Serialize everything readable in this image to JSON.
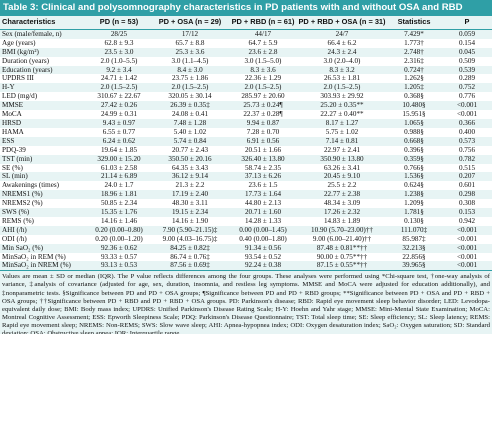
{
  "title": "Table 3: Clinical and polysomnography characteristics in PD patients with and without OSA and RBD",
  "columns": [
    "Characteristics",
    "PD (n = 53)",
    "PD + OSA (n = 29)",
    "PD + RBD (n = 61)",
    "PD + RBD + OSA (n = 31)",
    "Statistics",
    "P"
  ],
  "rows": [
    [
      "Sex (male/female, n)",
      "28/25",
      "17/12",
      "44/17",
      "24/7",
      "7.429*",
      "0.059"
    ],
    [
      "Age (years)",
      "62.8 ± 9.3",
      "65.7 ± 8.8",
      "64.7 ± 5.9",
      "66.4 ± 6.2",
      "1.773†",
      "0.154"
    ],
    [
      "BMI (kg/m²)",
      "23.5 ± 3.0",
      "25.3 ± 3.6",
      "23.6 ± 2.8",
      "24.3 ± 2.4",
      "2.748†",
      "0.045"
    ],
    [
      "Duration (years)",
      "2.0 (1.0–5.5)",
      "3.0 (1.1–4.5)",
      "3.0 (1.5–5.0)",
      "3.0 (2.0–4.0)",
      "2.316‡",
      "0.509"
    ],
    [
      "Education (years)",
      "9.2 ± 3.4",
      "8.4 ± 3.0",
      "8.3 ± 3.6",
      "8.3 ± 3.2",
      "0.724†",
      "0.539"
    ],
    [
      "UPDRS III",
      "24.71 ± 1.42",
      "23.75 ± 1.86",
      "22.36 ± 1.29",
      "26.53 ± 1.81",
      "1.262§",
      "0.289"
    ],
    [
      "H-Y",
      "2.0 (1.5–2.5)",
      "2.0 (1.5–2.5)",
      "2.0 (1.5–2.5)",
      "2.0 (1.5–2.5)",
      "1.205‡",
      "0.752"
    ],
    [
      "LED (mg/d)",
      "310.67 ± 22.67",
      "320.05 ± 30.14",
      "285.97 ± 20.60",
      "303.93 ± 29.92",
      "0.368§",
      "0.776"
    ],
    [
      "MMSE",
      "27.42 ± 0.26",
      "26.39 ± 0.35‡",
      "25.73 ± 0.24¶",
      "25.20 ± 0.35**",
      "10.480§",
      "<0.001"
    ],
    [
      "MoCA",
      "24.99 ± 0.31",
      "24.08 ± 0.41",
      "22.37 ± 0.28¶",
      "22.27 ± 0.40**",
      "15.951§",
      "<0.001"
    ],
    [
      "HRSD",
      "9.43 ± 0.97",
      "7.48 ± 1.28",
      "9.94 ± 0.87",
      "8.17 ± 1.27",
      "1.065§",
      "0.366"
    ],
    [
      "HAMA",
      "6.55 ± 0.77",
      "5.40 ± 1.02",
      "7.28 ± 0.70",
      "5.75 ± 1.02",
      "0.988§",
      "0.400"
    ],
    [
      "ESS",
      "6.24 ± 0.62",
      "5.74 ± 0.84",
      "6.91 ± 0.56",
      "7.14 ± 0.81",
      "0.668§",
      "0.573"
    ],
    [
      "PDQ-39",
      "19.64 ± 1.85",
      "20.77 ± 2.43",
      "20.51 ± 1.66",
      "22.97 ± 2.41",
      "0.396§",
      "0.756"
    ],
    [
      "TST (min)",
      "329.00 ± 15.20",
      "350.50 ± 20.16",
      "326.40 ± 13.80",
      "350.90 ± 13.80",
      "0.359§",
      "0.782"
    ],
    [
      "SE (%)",
      "61.03 ± 2.58",
      "64.35 ± 3.43",
      "58.74 ± 2.35",
      "63.26 ± 3.41",
      "0.766§",
      "0.515"
    ],
    [
      "SL (min)",
      "21.14 ± 6.89",
      "36.12 ± 9.14",
      "37.13 ± 6.26",
      "20.45 ± 9.10",
      "1.536§",
      "0.207"
    ],
    [
      "Awakenings (times)",
      "24.0 ± 1.7",
      "21.3 ± 2.2",
      "23.6 ± 1.5",
      "25.5 ± 2.2",
      "0.624§",
      "0.601"
    ],
    [
      "NREMS1 (%)",
      "18.96 ± 1.81",
      "17.19 ± 2.40",
      "17.73 ± 1.64",
      "22.77 ± 2.38",
      "1.238§",
      "0.298"
    ],
    [
      "NREMS2 (%)",
      "50.85 ± 2.34",
      "48.30 ± 3.11",
      "44.80 ± 2.13",
      "48.34 ± 3.09",
      "1.209§",
      "0.308"
    ],
    [
      "SWS (%)",
      "15.35 ± 1.76",
      "19.15 ± 2.34",
      "20.71 ± 1.60",
      "17.26 ± 2.32",
      "1.781§",
      "0.153"
    ],
    [
      "REMS (%)",
      "14.16 ± 1.46",
      "14.16 ± 1.90",
      "14.28 ± 1.33",
      "14.83 ± 1.89",
      "0.130§",
      "0.942"
    ],
    [
      "AHI (/h)",
      "0.20 (0.00–0.80)",
      "7.90 (5.90–21.15)‡",
      "0.00 (0.00–1.45)",
      "10.90 (5.70–23.00)††",
      "111.070‡",
      "<0.001"
    ],
    [
      "ODI (/h)",
      "0.20 (0.00–1.20)",
      "9.00 (4.03–16.75)‡",
      "0.40 (0.00–1.80)",
      "9.00 (6.00–21.40)††",
      "85.987‡",
      "<0.001"
    ],
    [
      "Min SaO₂ (%)",
      "92.36 ± 0.62",
      "84.25 ± 0.82‡",
      "91.34 ± 0.56",
      "87.48 ± 0.81**††",
      "32.213§",
      "<0.001"
    ],
    [
      "MinSaO₂ in REM (%)",
      "93.33 ± 0.57",
      "86.74 ± 0.76‡",
      "93.54 ± 0.52",
      "90.00 ± 0.75**††",
      "22.856§",
      "<0.001"
    ],
    [
      "MinSaO₂ in NREM (%)",
      "93.13 ± 0.53",
      "87.56 ± 0.69‡",
      "92.24 ± 0.38",
      "87.15 ± 0.55**††",
      "39.965§",
      "<0.001"
    ]
  ],
  "footnote": "Values are mean ± SD or median (IQR). The P value reflects differences among the four groups. These analyses were performed using *Chi-square test, †one-way analysis of variance, ‡analysis of covariance (adjusted for age, sex, duration, insomnia, and restless leg symptoms. MMSE and MoCA were adjusted for education additionally), and ‡nonparametric tests. §Significance between PD and PD + OSA groups; ¶Significance between PD and PD + RBD groups; **Significance between PD + OSA and PD + RBD + OSA groups; ††Significance between PD + RBD and PD + RBD + OSA groups. PD: Parkinson's disease; RBD: Rapid eye movement sleep behavior disorder; LED: Levodopa-equivalent daily dose; BMI: Body mass index; UPDRS: Unified Parkinson's Disease Rating Scale; H-Y: Hoehn and Yahr stage; MMSE: Mini-Mental State Examination; MoCA: Montreal Cognitive Assessment; ESS: Epworth Sleepiness Scale; PDQ: Parkinson's Disease Questionnaire; TST: Total sleep time; SE: Sleep efficiency; SL: Sleep latency; REMS: Rapid eye movement sleep; NREMS: Non-REMS; SWS: Slow wave sleep; AHI: Apnea-hypopnea index; ODI: Oxygen desaturation index; SaO₂: Oxygen saturation; SD: Standard deviation; OSA: Obstructive sleep apnea; IQR: Interquartile range."
}
